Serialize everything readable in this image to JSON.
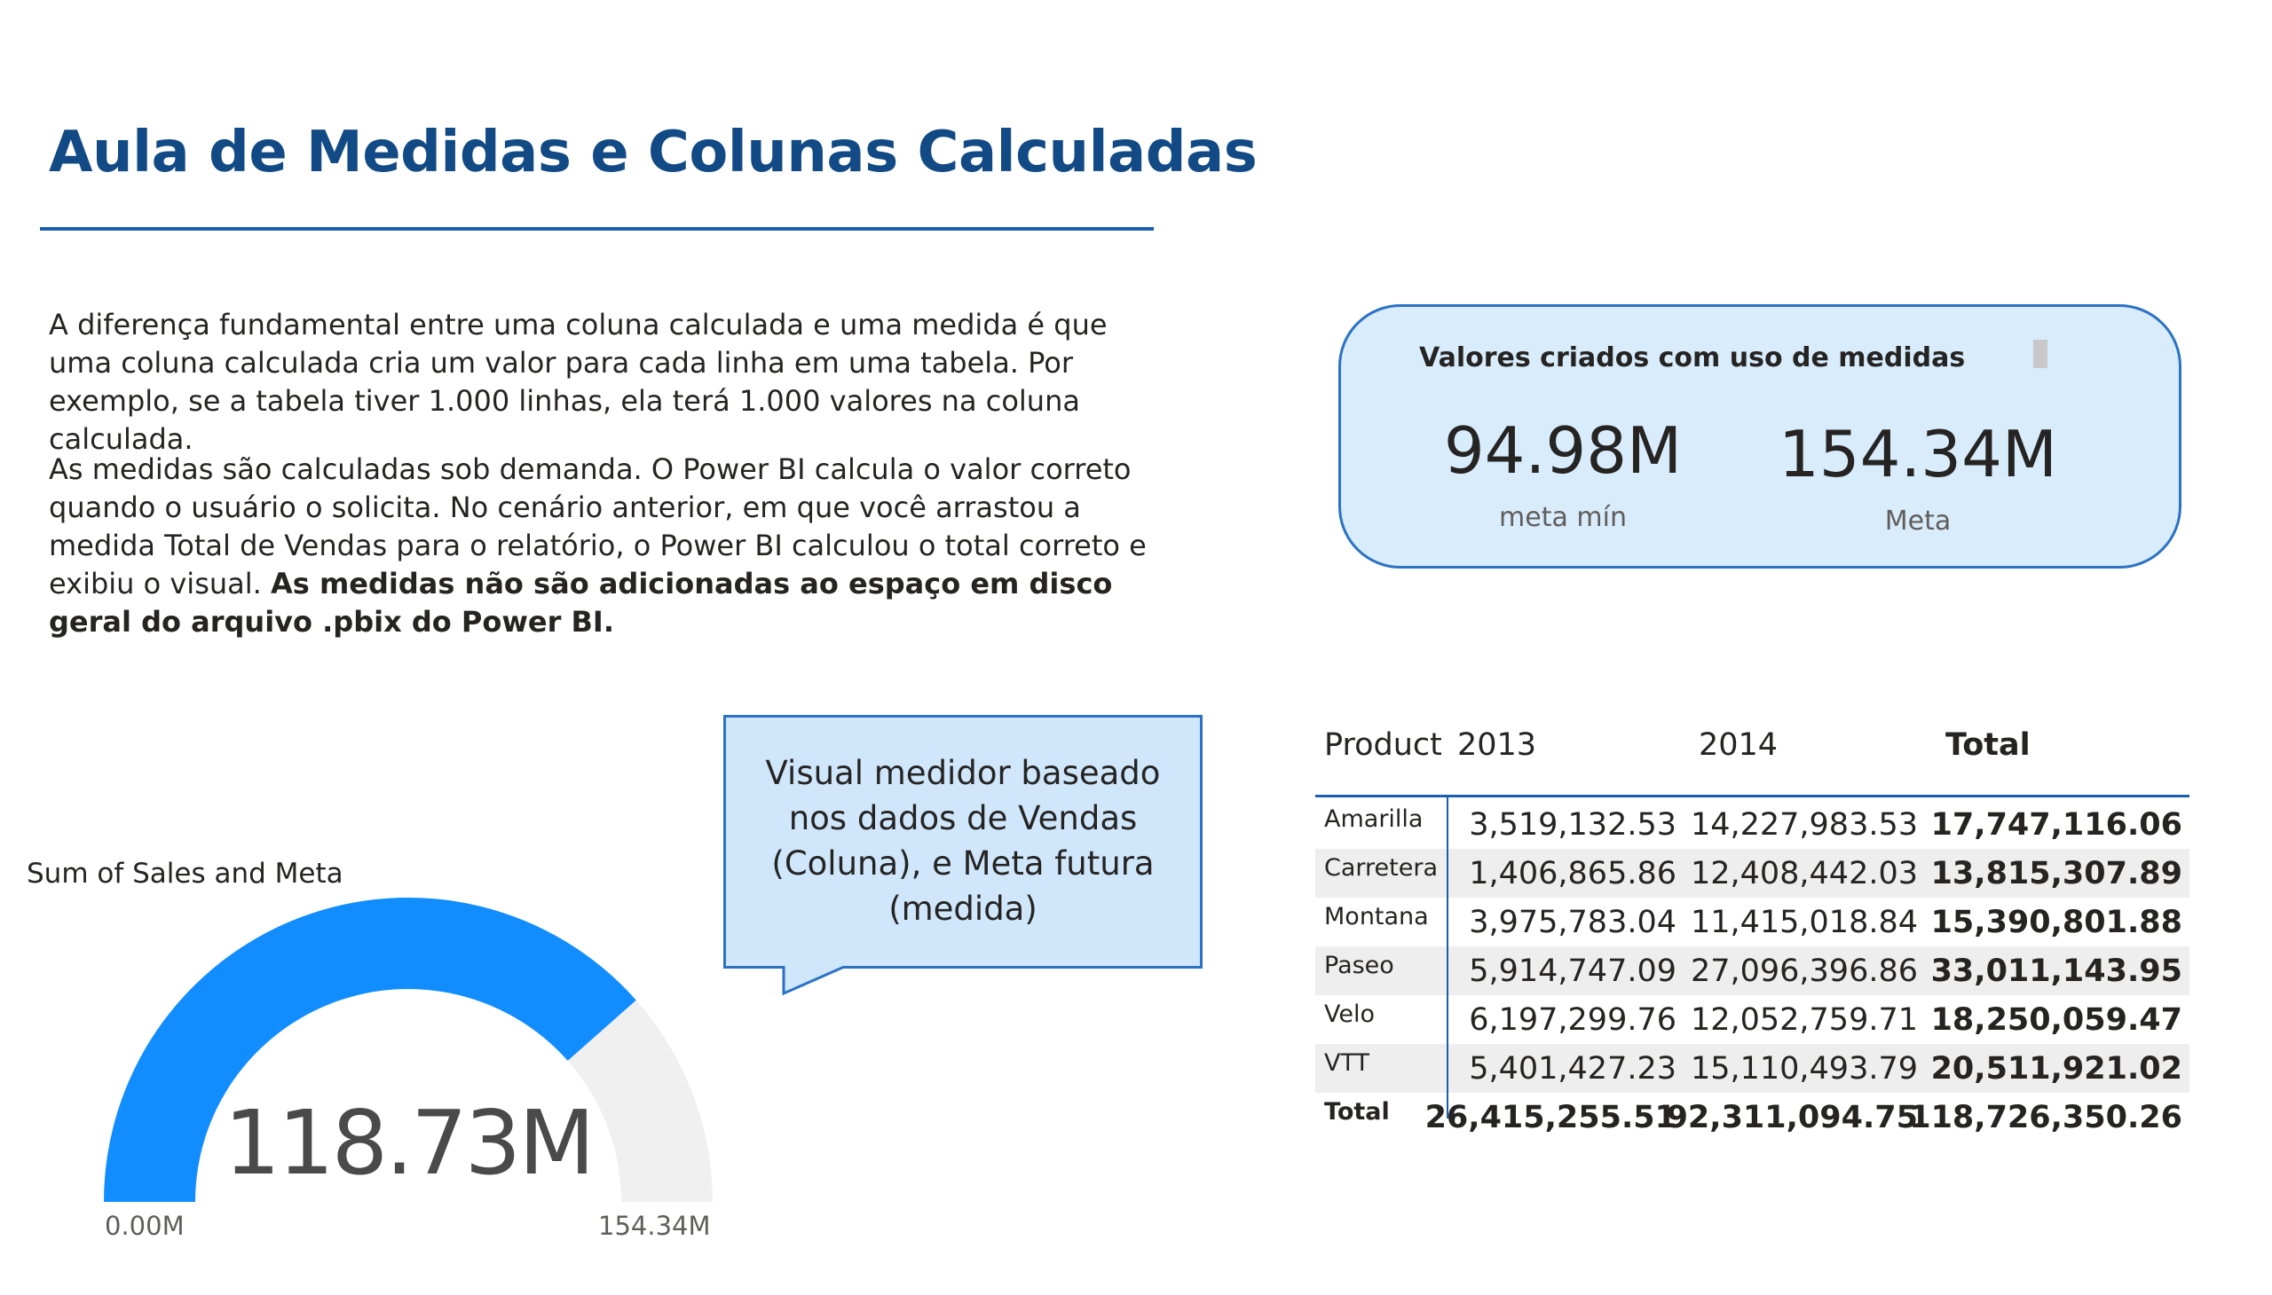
{
  "header": {
    "title": "Aula de Medidas e Colunas Calculadas"
  },
  "content": {
    "paragraph1": "A diferença fundamental entre uma coluna calculada e uma medida é que uma coluna calculada cria um valor para cada linha em uma tabela. Por exemplo, se a tabela tiver 1.000 linhas, ela terá 1.000 valores na coluna calculada.",
    "paragraph2_regular": "As medidas são calculadas sob demanda. O Power BI calcula o valor correto quando o usuário o solicita. No cenário anterior, em que você arrastou a medida Total de Vendas para o relatório, o Power BI calculou o total correto e exibiu o visual. ",
    "paragraph2_bold": "As medidas não são adicionadas ao espaço em disco geral do arquivo .pbix do Power BI."
  },
  "measures_card": {
    "title": "Valores criados com uso de medidas",
    "kpis": [
      {
        "value": "94.98M",
        "label": "meta mín"
      },
      {
        "value": "154.34M",
        "label": "Meta"
      }
    ],
    "colors": {
      "background": "#d8ecfb",
      "border": "#2b72c5"
    }
  },
  "callout": {
    "text": "Visual medidor baseado nos dados de Vendas (Coluna), e Meta futura (medida)"
  },
  "gauge": {
    "title": "Sum of Sales and Meta",
    "value_label": "118.73M",
    "min_label": "0.00M",
    "max_label": "154.34M",
    "value": 118.73,
    "min": 0,
    "max": 154.34,
    "colors": {
      "fill": "#118dff",
      "track": "#f0f0f0"
    }
  },
  "matrix": {
    "columns": [
      "Product",
      "2013",
      "2014",
      "Total"
    ],
    "rows": [
      {
        "product": "Amarilla",
        "y2013": "3,519,132.53",
        "y2014": "14,227,983.53",
        "total": "17,747,116.06"
      },
      {
        "product": "Carretera",
        "y2013": "1,406,865.86",
        "y2014": "12,408,442.03",
        "total": "13,815,307.89"
      },
      {
        "product": "Montana",
        "y2013": "3,975,783.04",
        "y2014": "11,415,018.84",
        "total": "15,390,801.88"
      },
      {
        "product": "Paseo",
        "y2013": "5,914,747.09",
        "y2014": "27,096,396.86",
        "total": "33,011,143.95"
      },
      {
        "product": "Velo",
        "y2013": "6,197,299.76",
        "y2014": "12,052,759.71",
        "total": "18,250,059.47"
      },
      {
        "product": "VTT",
        "y2013": "5,401,427.23",
        "y2014": "15,110,493.79",
        "total": "20,511,921.02"
      }
    ],
    "total_row": {
      "product": "Total",
      "y2013": "26,415,255.51",
      "y2014": "92,311,094.75",
      "total": "118,726,350.26"
    }
  }
}
